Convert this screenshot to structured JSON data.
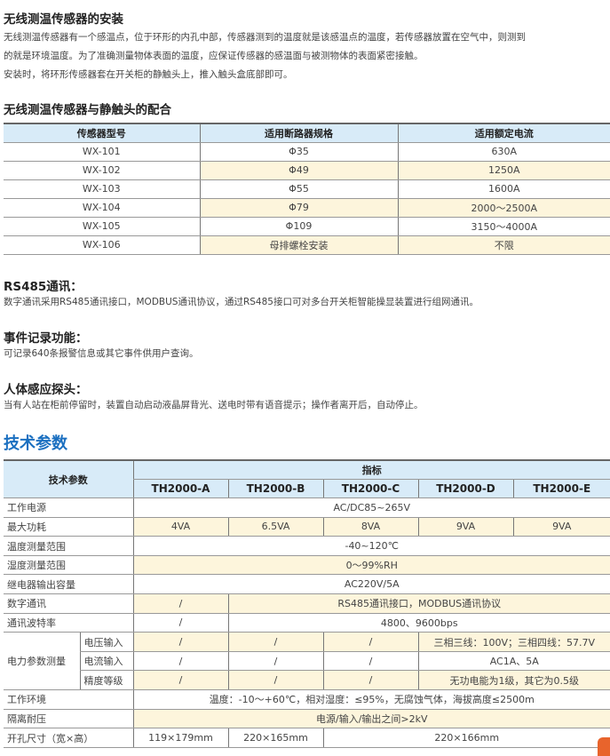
{
  "install": {
    "title": "无线测温传感器的安装",
    "lines": [
      "无线测温传感器有一个感温点，位于环形的内孔中部，传感器测到的温度就是该感温点的温度，若传感器放置在空气中，则测到",
      "的就是环境温度。为了准确测量物体表面的温度，应保证传感器的感温面与被测物体的表面紧密接触。",
      "安装时，将环形传感器套在开关柜的静触头上，推入触头盒底部即可。"
    ]
  },
  "match": {
    "title": "无线测温传感器与静触头的配合",
    "headers": [
      "传感器型号",
      "适用断路器规格",
      "适用额定电流"
    ],
    "rows": [
      [
        "WX-101",
        "Φ35",
        "630A"
      ],
      [
        "WX-102",
        "Φ49",
        "1250A"
      ],
      [
        "WX-103",
        "Φ55",
        "1600A"
      ],
      [
        "WX-104",
        "Φ79",
        "2000～2500A"
      ],
      [
        "WX-105",
        "Φ109",
        "3150～4000A"
      ],
      [
        "WX-106",
        "母排螺栓安装",
        "不限"
      ]
    ]
  },
  "rs485": {
    "title": "RS485通讯：",
    "text": "数字通讯采用RS485通讯接口，MODBUS通讯协议，通过RS485接口可对多台开关柜智能操显装置进行组网通讯。"
  },
  "event": {
    "title": "事件记录功能：",
    "text": "可记录640条报警信息或其它事件供用户查询。"
  },
  "sensor": {
    "title": "人体感应探头：",
    "text": "当有人站在柜前停留时，装置自动启动液晶屏背光、送电时带有语音提示；操作者离开后，自动停止。"
  },
  "tech": {
    "title": "技术参数",
    "param_header": "技术参数",
    "index_header": "指标",
    "models": [
      "TH2000-A",
      "TH2000-B",
      "TH2000-C",
      "TH2000-D",
      "TH2000-E"
    ],
    "power": {
      "label": "工作电源",
      "value": "AC/DC85~265V"
    },
    "consumption": {
      "label": "最大功耗",
      "values": [
        "4VA",
        "6.5VA",
        "8VA",
        "9VA",
        "9VA"
      ]
    },
    "temp": {
      "label": "温度测量范围",
      "value": "-40~120℃"
    },
    "humidity": {
      "label": "湿度测量范围",
      "value": "0～99%RH"
    },
    "relay": {
      "label": "继电器输出容量",
      "value": "AC220V/5A"
    },
    "comm": {
      "label": "数字通讯",
      "a": "/",
      "value": "RS485通讯接口，MODBUS通讯协议"
    },
    "baud": {
      "label": "通讯波特率",
      "a": "/",
      "value": "4800、9600bps"
    },
    "meas": {
      "label": "电力参数测量",
      "voltage": {
        "label": "电压输入",
        "a": "/",
        "b": "/",
        "c": "/",
        "de": "三相三线：100V；三相四线：57.7V"
      },
      "current": {
        "label": "电流输入",
        "a": "/",
        "b": "/",
        "c": "/",
        "de": "AC1A、5A"
      },
      "accuracy": {
        "label": "精度等级",
        "a": "/",
        "b": "/",
        "c": "/",
        "de": "无功电能为1级，其它为0.5级"
      }
    },
    "env": {
      "label": "工作环境",
      "value": "温度：-10～+60℃，相对湿度：≤95%，无腐蚀气体，海拔高度≤2500m"
    },
    "isolation": {
      "label": "隔离耐压",
      "value": "电源/输入/输出之间>2kV"
    },
    "cutout": {
      "label": "开孔尺寸（宽×高）",
      "a": "119×179mm",
      "b": "220×165mm",
      "cde": "220×166mm"
    }
  }
}
